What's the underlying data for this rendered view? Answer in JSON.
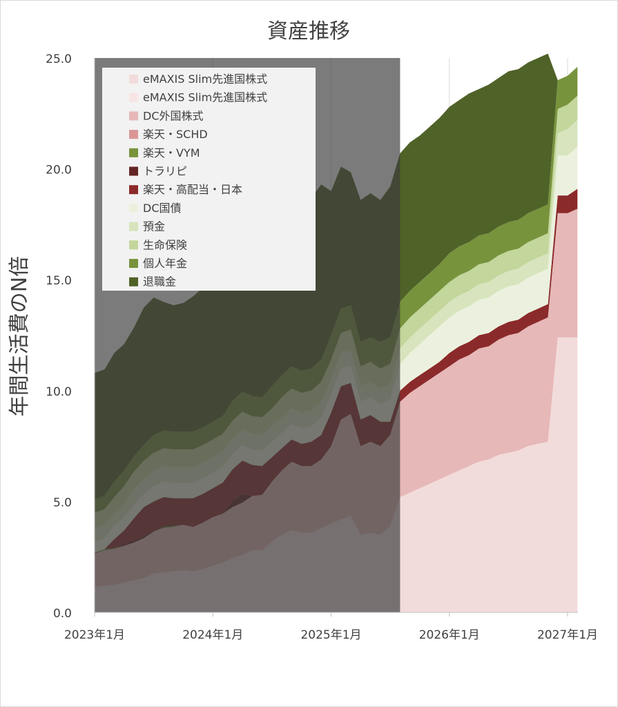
{
  "chart_data": {
    "type": "area",
    "stacked": true,
    "title": "資産推移",
    "ylabel": "年間生活費のN倍",
    "xlabel": "",
    "ylim": [
      0,
      25
    ],
    "y_ticks": [
      "0.0",
      "5.0",
      "10.0",
      "15.0",
      "20.0",
      "25.0"
    ],
    "x_range": [
      "2023-01",
      "2027-02"
    ],
    "x_ticks": [
      "2023年1月",
      "2024年1月",
      "2025年1月",
      "2026年1月",
      "2027年1月"
    ],
    "shaded_past_until": "2025-08",
    "legend_position": "top-left",
    "x": [
      "2023-01",
      "2023-02",
      "2023-03",
      "2023-04",
      "2023-05",
      "2023-06",
      "2023-07",
      "2023-08",
      "2023-09",
      "2023-10",
      "2023-11",
      "2023-12",
      "2024-01",
      "2024-02",
      "2024-03",
      "2024-04",
      "2024-05",
      "2024-06",
      "2024-07",
      "2024-08",
      "2024-09",
      "2024-10",
      "2024-11",
      "2024-12",
      "2025-01",
      "2025-02",
      "2025-03",
      "2025-04",
      "2025-05",
      "2025-06",
      "2025-07",
      "2025-08",
      "2025-09",
      "2025-10",
      "2025-11",
      "2025-12",
      "2026-01",
      "2026-02",
      "2026-03",
      "2026-04",
      "2026-05",
      "2026-06",
      "2026-07",
      "2026-08",
      "2026-09",
      "2026-10",
      "2026-11",
      "2026-12",
      "2027-01",
      "2027-02"
    ],
    "series": [
      {
        "name": "eMAXIS Slim先進国株式",
        "color": "#f2dcdb",
        "values": [
          1.15,
          1.2,
          1.25,
          1.35,
          1.45,
          1.55,
          1.75,
          1.8,
          1.85,
          1.9,
          1.85,
          1.95,
          2.1,
          2.25,
          2.45,
          2.6,
          2.8,
          2.8,
          3.2,
          3.5,
          3.7,
          3.6,
          3.6,
          3.8,
          4.0,
          4.2,
          4.35,
          3.5,
          3.6,
          3.5,
          3.9,
          5.2,
          5.4,
          5.6,
          5.8,
          6.0,
          6.2,
          6.4,
          6.6,
          6.8,
          6.9,
          7.1,
          7.2,
          7.3,
          7.5,
          7.6,
          7.7,
          12.4,
          12.4,
          12.4
        ]
      },
      {
        "name": "eMAXIS Slim先進国株式",
        "color": "#f7e4e4",
        "values": [
          0,
          0,
          0,
          0,
          0,
          0,
          0,
          0,
          0,
          0,
          0,
          0,
          0,
          0,
          0,
          0,
          0,
          0,
          0,
          0,
          0,
          0,
          0,
          0,
          0,
          0,
          0,
          0,
          0,
          0,
          0,
          0,
          0,
          0,
          0,
          0,
          0,
          0,
          0,
          0,
          0,
          0,
          0,
          0,
          0,
          0,
          0,
          0,
          0,
          0
        ]
      },
      {
        "name": "DC外国株式",
        "color": "#e6b8b7",
        "values": [
          1.5,
          1.6,
          1.6,
          1.65,
          1.7,
          1.8,
          1.9,
          2.0,
          2.0,
          2.05,
          2.0,
          2.1,
          2.2,
          2.2,
          2.3,
          2.35,
          2.45,
          2.5,
          2.7,
          2.9,
          3.1,
          3.0,
          3.0,
          3.1,
          3.5,
          4.5,
          4.6,
          4.0,
          4.1,
          4.0,
          4.1,
          4.3,
          4.5,
          4.6,
          4.7,
          4.8,
          4.9,
          5.0,
          5.0,
          5.1,
          5.1,
          5.2,
          5.3,
          5.3,
          5.4,
          5.5,
          5.6,
          5.6,
          5.6,
          5.8
        ]
      },
      {
        "name": "楽天・SCHD",
        "color": "#da9694",
        "values": [
          0,
          0,
          0,
          0,
          0,
          0,
          0,
          0,
          0,
          0,
          0,
          0,
          0,
          0,
          0,
          0,
          0,
          0,
          0,
          0,
          0,
          0,
          0,
          0,
          0,
          0,
          0,
          0,
          0,
          0,
          0,
          0,
          0,
          0,
          0,
          0,
          0,
          0,
          0,
          0,
          0,
          0,
          0,
          0,
          0,
          0,
          0,
          0,
          0,
          0
        ]
      },
      {
        "name": "楽天・VYM",
        "color": "#77933c",
        "values": [
          0.05,
          0.05,
          0.05,
          0,
          0,
          0,
          0,
          0.05,
          0.05,
          0,
          0,
          0,
          0,
          0,
          0,
          0,
          0,
          0,
          0,
          0,
          0,
          0,
          0,
          0,
          0,
          0,
          0,
          0,
          0,
          0,
          0,
          0,
          0,
          0,
          0,
          0,
          0,
          0,
          0,
          0,
          0,
          0,
          0,
          0,
          0,
          0,
          0,
          0,
          0,
          0
        ]
      },
      {
        "name": "トラリピ",
        "color": "#632523",
        "values": [
          0,
          0,
          0,
          0.1,
          0.1,
          0.1,
          0.05,
          0.05,
          0.05,
          0,
          0,
          0,
          0,
          0,
          0.3,
          0.4,
          0,
          0,
          0,
          0,
          0,
          0,
          0,
          0,
          0,
          0,
          0,
          0,
          0,
          0,
          0,
          0,
          0,
          0,
          0,
          0,
          0,
          0,
          0,
          0,
          0,
          0,
          0,
          0,
          0,
          0,
          0,
          0,
          0,
          0
        ]
      },
      {
        "name": "楽天・高配当・日本",
        "color": "#8b2a2a",
        "values": [
          0,
          0,
          0.4,
          0.6,
          1.0,
          1.3,
          1.3,
          1.3,
          1.2,
          1.2,
          1.3,
          1.3,
          1.3,
          1.4,
          1.4,
          1.5,
          1.4,
          1.3,
          1.1,
          1.0,
          1.0,
          1.0,
          1.1,
          1.1,
          1.5,
          1.5,
          1.4,
          1.2,
          1.2,
          1.1,
          0.6,
          0.5,
          0.5,
          0.5,
          0.5,
          0.5,
          0.6,
          0.6,
          0.6,
          0.6,
          0.6,
          0.6,
          0.6,
          0.6,
          0.6,
          0.6,
          0.6,
          0.8,
          0.8,
          0.9
        ]
      },
      {
        "name": "DC国債",
        "color": "#ebf1de",
        "values": [
          0.5,
          0.5,
          0.6,
          0.6,
          0.6,
          0.6,
          0.7,
          0.7,
          0.7,
          0.7,
          0.7,
          0.7,
          0.7,
          0.7,
          0.7,
          0.7,
          0.7,
          0.7,
          0.7,
          0.7,
          0.7,
          0.7,
          0.7,
          0.8,
          0.8,
          0.8,
          0.8,
          0.8,
          0.8,
          0.8,
          1.0,
          1.2,
          1.3,
          1.4,
          1.5,
          1.6,
          1.6,
          1.6,
          1.6,
          1.6,
          1.6,
          1.6,
          1.6,
          1.6,
          1.6,
          1.6,
          1.6,
          1.8,
          1.8,
          1.9
        ]
      },
      {
        "name": "預金",
        "color": "#d7e4bd",
        "values": [
          0.6,
          0.6,
          0.6,
          0.6,
          0.7,
          0.7,
          0.7,
          0.7,
          0.7,
          0.7,
          0.7,
          0.7,
          0.7,
          0.7,
          0.7,
          0.7,
          0.7,
          0.7,
          0.7,
          0.7,
          0.7,
          0.7,
          0.7,
          0.7,
          0.7,
          0.7,
          0.7,
          0.7,
          0.7,
          0.7,
          0.7,
          0.7,
          0.7,
          0.7,
          0.7,
          0.7,
          0.7,
          0.7,
          0.7,
          0.7,
          0.7,
          0.7,
          0.7,
          0.7,
          0.7,
          0.7,
          0.7,
          1.0,
          1.2,
          1.2
        ]
      },
      {
        "name": "生命保険",
        "color": "#c3d69b",
        "values": [
          0.7,
          0.7,
          0.7,
          0.8,
          0.8,
          0.8,
          0.8,
          0.8,
          0.8,
          0.8,
          0.8,
          0.8,
          0.8,
          0.8,
          0.8,
          0.8,
          0.8,
          0.8,
          0.8,
          0.9,
          0.9,
          0.9,
          0.9,
          0.9,
          0.9,
          0.9,
          0.9,
          0.9,
          0.9,
          0.9,
          0.9,
          0.9,
          0.9,
          0.9,
          0.9,
          0.9,
          0.9,
          0.9,
          0.9,
          0.9,
          0.9,
          0.9,
          0.9,
          0.9,
          0.9,
          0.9,
          0.9,
          1.1,
          1.1,
          1.1
        ]
      },
      {
        "name": "個人年金",
        "color": "#77933c",
        "values": [
          0.6,
          0.6,
          0.7,
          0.7,
          0.7,
          0.7,
          0.8,
          0.8,
          0.8,
          0.8,
          0.8,
          0.8,
          0.8,
          0.8,
          0.9,
          0.9,
          0.9,
          0.9,
          1.0,
          1.0,
          1.0,
          1.0,
          1.0,
          1.0,
          1.1,
          1.1,
          1.1,
          1.1,
          1.1,
          1.2,
          1.2,
          1.2,
          1.2,
          1.2,
          1.2,
          1.2,
          1.3,
          1.3,
          1.3,
          1.3,
          1.3,
          1.3,
          1.3,
          1.3,
          1.3,
          1.3,
          1.3,
          1.3,
          1.3,
          1.3
        ]
      },
      {
        "name": "退職金",
        "color": "#4f6228",
        "values": [
          5.7,
          5.7,
          5.8,
          5.7,
          5.8,
          6.2,
          6.2,
          5.8,
          5.7,
          5.8,
          6.1,
          6.3,
          6.3,
          6.5,
          6.6,
          6.7,
          6.9,
          7.2,
          7.4,
          7.4,
          7.5,
          7.6,
          7.7,
          7.9,
          6.5,
          6.4,
          6.0,
          6.4,
          6.5,
          6.4,
          6.8,
          6.7,
          6.7,
          6.6,
          6.6,
          6.6,
          6.6,
          6.6,
          6.7,
          6.6,
          6.7,
          6.7,
          6.8,
          6.8,
          6.8,
          6.8,
          6.8,
          0,
          0,
          0
        ]
      }
    ]
  }
}
